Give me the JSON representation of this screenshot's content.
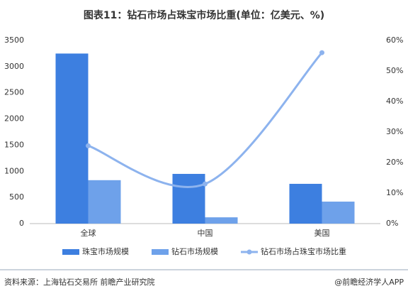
{
  "chart_data": {
    "type": "bar-line",
    "title": "图表11：钻石市场占珠宝市场比重(单位：亿美元、%)",
    "categories": [
      "全球",
      "中国",
      "美国"
    ],
    "series": [
      {
        "name": "珠宝市场规模",
        "color": "#3d7fe0",
        "type": "bar",
        "values": [
          3250,
          950,
          760
        ]
      },
      {
        "name": "钻石市场规模",
        "color": "#6ea1ea",
        "type": "bar",
        "values": [
          830,
          120,
          420
        ]
      },
      {
        "name": "钻石市场占珠宝市场比重",
        "color": "#8db3ee",
        "type": "line",
        "axis": "y2",
        "values": [
          25.5,
          13,
          56
        ]
      }
    ],
    "ylim": [
      0,
      3500
    ],
    "yticks": [
      0,
      500,
      1000,
      1500,
      2000,
      2500,
      3000,
      3500
    ],
    "y2lim": [
      0,
      60
    ],
    "y2ticks": [
      {
        "value": 0,
        "label": "0%"
      },
      {
        "value": 10,
        "label": "10%"
      },
      {
        "value": 20,
        "label": "20%"
      },
      {
        "value": 30,
        "label": "30%"
      },
      {
        "value": 40,
        "label": "40%"
      },
      {
        "value": 50,
        "label": "50%"
      },
      {
        "value": 60,
        "label": "60%"
      }
    ],
    "legend": "bottom",
    "source": "资料来源：上海钻石交易所 前瞻产业研究院",
    "credit": "@前瞻经济学人APP"
  }
}
